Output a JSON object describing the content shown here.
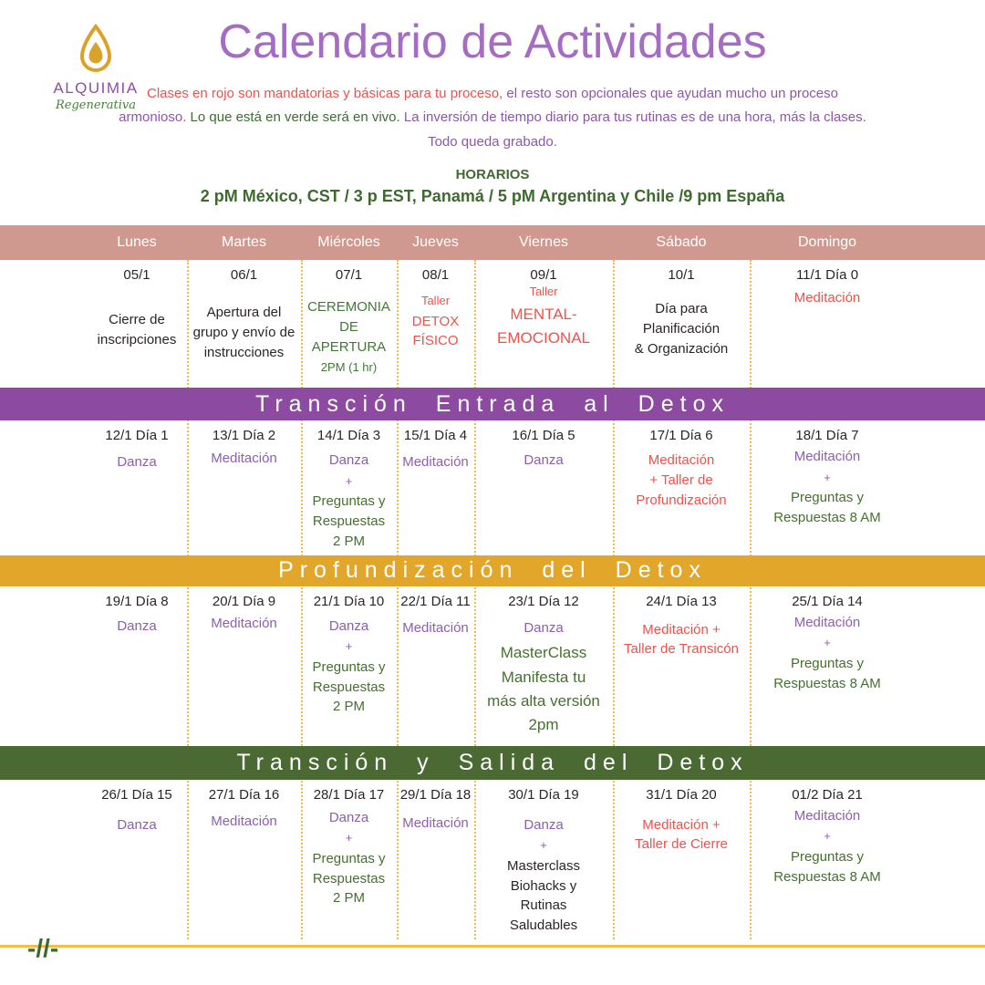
{
  "logo": {
    "name": "ALQUIMIA",
    "tagline": "Regenerativa"
  },
  "title": "Calendario de Actividades",
  "intro": {
    "segments": [
      {
        "text": "Clases en rojo son mandatorias y básicas para tu proceso, ",
        "color": "red"
      },
      {
        "text": "el resto son opcionales que ayudan mucho un proceso\narmonioso. ",
        "color": "purple"
      },
      {
        "text": "Lo que está en verde será en vivo. ",
        "color": "green"
      },
      {
        "text": " La inversión de tiempo diario para tus rutinas es de una hora, más la clases.\nTodo queda grabado.",
        "color": "purple"
      }
    ]
  },
  "schedule": {
    "heading": "HORARIOS",
    "times": "2 pM México, CST / 3 p EST, Panamá / 5 pM Argentina y Chile /9 pm España"
  },
  "calendar": {
    "day_headers": [
      "Lunes",
      "Martes",
      "Miércoles",
      "Jueves",
      "Viernes",
      "Sábado",
      "Domingo"
    ],
    "banners": [
      {
        "label": "Transción Entrada al Detox",
        "color": "#8c4ba1"
      },
      {
        "label": "Profundización del Detox",
        "color": "#e2a62b"
      },
      {
        "label": "Transción y Salida del Detox",
        "color": "#4b6a33"
      }
    ],
    "weeks": [
      {
        "cells": [
          {
            "date": "05/1",
            "gap": 30,
            "lines": [
              {
                "text": "Cierre de\ninscripciones",
                "color": "black"
              }
            ]
          },
          {
            "date": "06/1",
            "gap": 22,
            "lines": [
              {
                "text": "Apertura del\ngrupo y envío de\ninstrucciones",
                "color": "black"
              }
            ]
          },
          {
            "date": "07/1",
            "gap": 16,
            "lines": [
              {
                "text": "CEREMONIA DE\nAPERTURA",
                "color": "greenBright"
              },
              {
                "text": "2PM (1 hr)",
                "color": "greenBright",
                "size": "sm"
              }
            ]
          },
          {
            "date": "08/1",
            "gap": 12,
            "lines": [
              {
                "text": "Taller",
                "color": "red",
                "size": "sm"
              },
              {
                "text": "DETOX FÍSICO",
                "color": "red"
              }
            ]
          },
          {
            "date": "09/1",
            "gap": 2,
            "lines": [
              {
                "text": "Taller",
                "color": "red",
                "size": "sm"
              },
              {
                "text": "MENTAL-\nEMOCIONAL",
                "color": "red",
                "size": "lg"
              }
            ]
          },
          {
            "date": "10/1",
            "gap": 18,
            "lines": [
              {
                "text": "Día para\nPlanificación\n& Organización",
                "color": "black"
              }
            ]
          },
          {
            "date": "11/1 Día 0",
            "gap": 6,
            "lines": [
              {
                "text": "Meditación",
                "color": "red"
              }
            ]
          }
        ]
      },
      {
        "cells": [
          {
            "date": "12/1 Día 1",
            "gap": 10,
            "lines": [
              {
                "text": "Danza",
                "color": "purple"
              }
            ]
          },
          {
            "date": "13/1 Día 2",
            "gap": 6,
            "lines": [
              {
                "text": "Meditación",
                "color": "purple"
              }
            ]
          },
          {
            "date": "14/1 Día 3",
            "gap": 8,
            "lines": [
              {
                "text": "Danza",
                "color": "purple"
              },
              {
                "text": "+",
                "color": "purple",
                "size": "sm"
              },
              {
                "text": "Preguntas y\nRespuestas\n2 PM",
                "color": "green"
              }
            ]
          },
          {
            "date": "15/1 Día 4",
            "gap": 10,
            "lines": [
              {
                "text": "Meditación",
                "color": "purple"
              }
            ]
          },
          {
            "date": "16/1 Día 5",
            "gap": 8,
            "lines": [
              {
                "text": "Danza",
                "color": "purple"
              }
            ]
          },
          {
            "date": "17/1 Día 6",
            "gap": 8,
            "lines": [
              {
                "text": "Meditación\n+ Taller de\nProfundización",
                "color": "red"
              }
            ]
          },
          {
            "date": "18/1 Día 7",
            "gap": 4,
            "lines": [
              {
                "text": "Meditación",
                "color": "purple"
              },
              {
                "text": "+",
                "color": "purple",
                "size": "sm"
              },
              {
                "text": "Preguntas y\nRespuestas 8 AM",
                "color": "green"
              }
            ]
          }
        ]
      },
      {
        "cells": [
          {
            "date": "19/1 Día 8",
            "gap": 8,
            "lines": [
              {
                "text": "Danza",
                "color": "purple"
              }
            ]
          },
          {
            "date": "20/1 Día 9",
            "gap": 5,
            "lines": [
              {
                "text": "Meditación",
                "color": "purple"
              }
            ]
          },
          {
            "date": "21/1 Día 10",
            "gap": 8,
            "lines": [
              {
                "text": "Danza",
                "color": "purple"
              },
              {
                "text": "+",
                "color": "purple",
                "size": "sm"
              },
              {
                "text": "Preguntas y\nRespuestas\n2 PM",
                "color": "green"
              }
            ]
          },
          {
            "date": "22/1 Día 11",
            "gap": 10,
            "lines": [
              {
                "text": "Meditación",
                "color": "purple"
              }
            ]
          },
          {
            "date": "23/1 Día 12",
            "gap": 10,
            "lines": [
              {
                "text": "Danza",
                "color": "purple"
              },
              {
                "text": "MasterClass\nManifesta tu\nmás alta versión\n2pm",
                "color": "green",
                "size": "lg"
              }
            ]
          },
          {
            "date": "24/1 Día 13",
            "gap": 12,
            "lines": [
              {
                "text": "Meditación +\nTaller de Transicón",
                "color": "red"
              }
            ]
          },
          {
            "date": "25/1 Día 14",
            "gap": 4,
            "lines": [
              {
                "text": "Meditación",
                "color": "purple"
              },
              {
                "text": "+",
                "color": "purple",
                "size": "sm"
              },
              {
                "text": "Preguntas y\nRespuestas 8 AM",
                "color": "green"
              }
            ]
          }
        ]
      },
      {
        "cells": [
          {
            "date": "26/1 Día 15",
            "gap": 14,
            "lines": [
              {
                "text": "Danza",
                "color": "purple"
              }
            ]
          },
          {
            "date": "27/1 Día 16",
            "gap": 10,
            "lines": [
              {
                "text": "Meditación",
                "color": "purple"
              }
            ]
          },
          {
            "date": "28/1 Día 17",
            "gap": 6,
            "lines": [
              {
                "text": "Danza",
                "color": "purple"
              },
              {
                "text": "+",
                "color": "purple",
                "size": "sm"
              },
              {
                "text": "Preguntas y\nRespuestas\n2 PM",
                "color": "green"
              }
            ]
          },
          {
            "date": "29/1 Día 18",
            "gap": 12,
            "lines": [
              {
                "text": "Meditación",
                "color": "purple"
              }
            ]
          },
          {
            "date": "30/1 Día 19",
            "gap": 14,
            "lines": [
              {
                "text": "Danza",
                "color": "purple"
              },
              {
                "text": "+",
                "color": "purple",
                "size": "sm"
              },
              {
                "text": "Masterclass\nBiohacks y\nRutinas\nSaludables",
                "color": "black"
              }
            ]
          },
          {
            "date": "31/1 Día 20",
            "gap": 14,
            "lines": [
              {
                "text": "Meditación +\nTaller de Cierre",
                "color": "red"
              }
            ]
          },
          {
            "date": "01/2 Día 21",
            "gap": 4,
            "lines": [
              {
                "text": "Meditación",
                "color": "purple"
              },
              {
                "text": "+",
                "color": "purple",
                "size": "sm"
              },
              {
                "text": "Preguntas y\nRespuestas 8 AM",
                "color": "green"
              }
            ]
          }
        ]
      }
    ]
  },
  "footer": {
    "mark": "-//-"
  },
  "colors": {
    "title_purple": "#a56cc4",
    "text_purple": "#8d5fae",
    "text_red": "#f3504a",
    "text_green": "#45702f",
    "text_black": "#2b2528",
    "header_pink": "#d0998f",
    "banner_purple": "#8c4ba1",
    "banner_yellow": "#e2a62b",
    "banner_green": "#4b6a33",
    "dotted_line": "#f0ba4c",
    "logo_gold": "#d9a32b"
  }
}
